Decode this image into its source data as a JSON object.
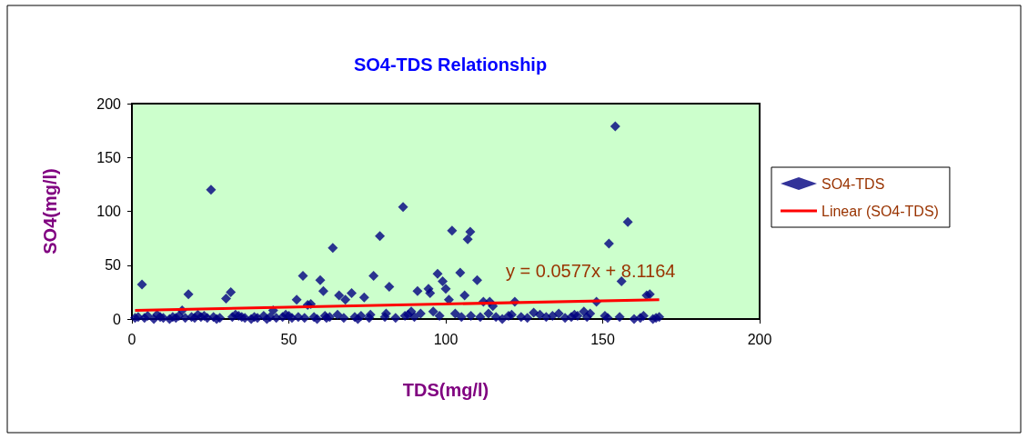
{
  "chart_data": {
    "type": "scatter",
    "title": "SO4-TDS Relationship",
    "xlabel": "TDS(mg/l)",
    "ylabel": "SO4(mg/l)",
    "xlim": [
      0,
      200
    ],
    "xticks": [
      0,
      50,
      100,
      150,
      200
    ],
    "ylim": [
      0,
      200
    ],
    "yticks": [
      0,
      50,
      100,
      150,
      200
    ],
    "grid": false,
    "legend": "right",
    "annotations": [
      "y = 0.0577x + 8.1164"
    ],
    "series": [
      {
        "name": "SO4-TDS",
        "color": "#000080",
        "marker": "diamond",
        "x": [
          1,
          2,
          3.2,
          4,
          5,
          7,
          8,
          9,
          10,
          12,
          13,
          14,
          15,
          16,
          17,
          18,
          19,
          20,
          21,
          22,
          23,
          24,
          25.2,
          26,
          27,
          28,
          30,
          31.5,
          32,
          33,
          34,
          35,
          36,
          38,
          39,
          40,
          42,
          43,
          44,
          45,
          46,
          48,
          49,
          50,
          51,
          52.5,
          53,
          54.5,
          55,
          56,
          57,
          58,
          59,
          60,
          61,
          61.5,
          62,
          63,
          64,
          65.5,
          66,
          67.5,
          68,
          70,
          71,
          72,
          73,
          74,
          75.6,
          76,
          77,
          79,
          80.6,
          81,
          82,
          84,
          86.4,
          87,
          88,
          89,
          90,
          91,
          92,
          94.5,
          95,
          96,
          97.4,
          98,
          99,
          100,
          101,
          102,
          103,
          104.6,
          105,
          106,
          107,
          107.8,
          108,
          110,
          111,
          112,
          113.6,
          114,
          115,
          116,
          118,
          120,
          121,
          122,
          124,
          126,
          128,
          130,
          132,
          134,
          136,
          138,
          140,
          141,
          142,
          144,
          145,
          146,
          148,
          150.7,
          151.6,
          152,
          154,
          155.4,
          156,
          158,
          160,
          162,
          163,
          164,
          165,
          166,
          167,
          168
        ],
        "values": [
          1,
          2,
          32,
          1,
          3,
          0,
          4,
          2,
          1,
          0,
          2,
          1,
          3,
          8,
          1,
          23,
          2,
          1,
          4,
          2,
          3,
          1,
          120,
          2,
          0,
          1,
          19,
          25,
          2,
          4,
          3,
          2,
          1,
          0,
          2,
          1,
          3,
          0,
          2,
          8,
          1,
          2,
          4,
          3,
          1,
          18,
          2,
          40,
          1,
          13,
          14,
          2,
          0,
          36,
          26,
          3,
          1,
          2,
          66,
          4,
          22,
          1,
          18,
          24,
          2,
          0,
          3,
          20,
          1,
          4,
          40,
          77,
          2,
          5,
          30,
          1,
          104,
          3,
          4,
          7,
          2,
          26,
          5,
          28,
          24,
          7,
          42,
          3,
          35,
          28,
          18,
          82,
          5,
          43,
          2,
          22,
          74,
          81,
          3,
          36,
          2,
          16,
          5,
          16,
          12,
          2,
          0,
          3,
          4,
          16,
          2,
          1,
          6,
          4,
          2,
          3,
          5,
          1,
          2,
          4,
          3,
          7,
          2,
          5,
          16,
          3,
          1,
          70,
          179,
          2,
          35,
          90,
          0,
          1,
          3,
          22,
          23,
          0,
          1,
          2
        ]
      },
      {
        "name": "Linear (SO4-TDS)",
        "color": "#ff0000",
        "type": "line",
        "marker": "none",
        "x": [
          1,
          168
        ],
        "values": [
          8,
          18
        ]
      }
    ]
  }
}
